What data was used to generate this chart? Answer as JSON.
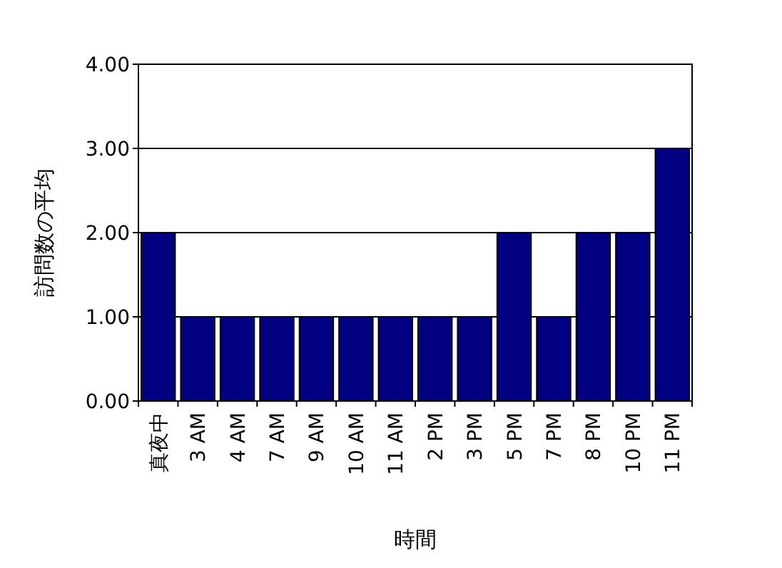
{
  "chart_data": {
    "type": "bar",
    "xlabel": "時間",
    "ylabel": "訪問数の平均",
    "categories": [
      "真夜中",
      "3 AM",
      "4 AM",
      "7 AM",
      "9 AM",
      "10 AM",
      "11 AM",
      "2 PM",
      "3 PM",
      "5 PM",
      "7 PM",
      "8 PM",
      "10 PM",
      "11 PM"
    ],
    "values": [
      2,
      1,
      1,
      1,
      1,
      1,
      1,
      1,
      1,
      2,
      1,
      2,
      2,
      3
    ],
    "color": "#000080",
    "ylim": [
      0,
      4
    ],
    "yticks": [
      {
        "value": 0,
        "label": "0.00"
      },
      {
        "value": 1,
        "label": "1.00"
      },
      {
        "value": 2,
        "label": "2.00"
      },
      {
        "value": 3,
        "label": "3.00"
      },
      {
        "value": 4,
        "label": "4.00"
      }
    ],
    "grid": "y"
  }
}
